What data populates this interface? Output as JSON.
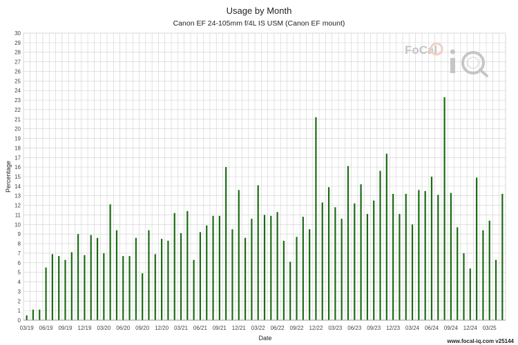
{
  "chart_data": {
    "type": "bar",
    "title": "Usage by Month",
    "subtitle": "Canon EF 24-105mm f/4L IS USM (Canon EF mount)",
    "xlabel": "Date",
    "ylabel": "Percentage",
    "ylim": [
      0,
      30
    ],
    "yticks": [
      0,
      1,
      2,
      3,
      4,
      5,
      6,
      7,
      8,
      9,
      10,
      11,
      12,
      13,
      14,
      15,
      16,
      17,
      18,
      19,
      20,
      21,
      22,
      23,
      24,
      25,
      26,
      27,
      28,
      29,
      30
    ],
    "grid": true,
    "bar_color": "#1a6b12",
    "x_tick_labels": [
      "03/19",
      "06/19",
      "09/19",
      "12/19",
      "03/20",
      "06/20",
      "09/20",
      "12/20",
      "03/21",
      "06/21",
      "09/21",
      "12/21",
      "03/22",
      "06/22",
      "09/22",
      "12/22",
      "03/23",
      "06/23",
      "09/23",
      "12/23",
      "03/24",
      "06/24",
      "09/24",
      "12/24",
      "03/25"
    ],
    "categories": [
      "03/19",
      "04/19",
      "05/19",
      "06/19",
      "07/19",
      "08/19",
      "09/19",
      "10/19",
      "11/19",
      "12/19",
      "01/20",
      "02/20",
      "03/20",
      "04/20",
      "05/20",
      "06/20",
      "07/20",
      "08/20",
      "09/20",
      "10/20",
      "11/20",
      "12/20",
      "01/21",
      "02/21",
      "03/21",
      "04/21",
      "05/21",
      "06/21",
      "07/21",
      "08/21",
      "09/21",
      "10/21",
      "11/21",
      "12/21",
      "01/22",
      "02/22",
      "03/22",
      "04/22",
      "05/22",
      "06/22",
      "07/22",
      "08/22",
      "09/22",
      "10/22",
      "11/22",
      "12/22",
      "01/23",
      "02/23",
      "03/23",
      "04/23",
      "05/23",
      "06/23",
      "07/23",
      "08/23",
      "09/23",
      "10/23",
      "11/23",
      "12/23",
      "01/24",
      "02/24",
      "03/24",
      "04/24",
      "05/24",
      "06/24",
      "07/24",
      "08/24",
      "09/24",
      "10/24",
      "11/24",
      "12/24",
      "01/25",
      "02/25",
      "03/25",
      "04/25",
      "05/25"
    ],
    "values": [
      0.5,
      1.1,
      1.1,
      5.5,
      6.9,
      6.7,
      6.3,
      7.1,
      9.0,
      6.8,
      8.9,
      8.6,
      7.0,
      12.1,
      9.4,
      6.7,
      6.7,
      8.6,
      4.9,
      9.4,
      6.9,
      8.5,
      8.3,
      11.2,
      9.1,
      11.4,
      6.3,
      9.2,
      9.9,
      10.9,
      10.9,
      16.0,
      9.5,
      13.6,
      8.6,
      10.6,
      14.1,
      11.0,
      10.9,
      11.3,
      8.3,
      6.1,
      8.7,
      10.8,
      9.5,
      21.2,
      12.3,
      13.9,
      11.8,
      10.6,
      16.1,
      12.2,
      14.2,
      11.1,
      12.5,
      15.6,
      17.4,
      13.2,
      11.1,
      13.2,
      10.0,
      13.6,
      13.5,
      15.0,
      13.1,
      23.3,
      13.3,
      9.7,
      7.0,
      5.4,
      14.9,
      9.4,
      10.4,
      6.3,
      13.2
    ]
  },
  "logo": {
    "text": "FoCal",
    "mark": "iQ"
  },
  "footer": "www.focal-iq.com  v25144"
}
